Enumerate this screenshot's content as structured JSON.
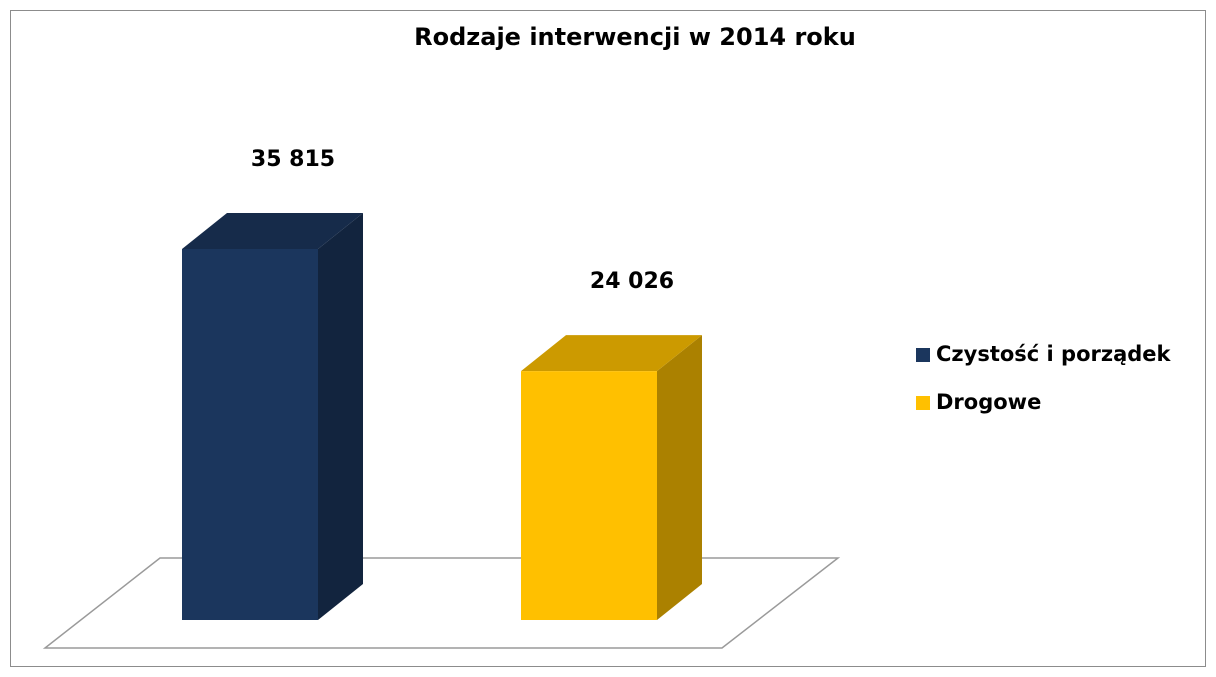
{
  "chart_data": {
    "type": "bar3d",
    "title": "Rodzaje interwencji w 2014 roku",
    "series": [
      {
        "name": "Czystość i porządek",
        "color": "#1b365d",
        "values": [
          35815
        ],
        "value_labels": [
          "35 815"
        ]
      },
      {
        "name": "Drogowe",
        "color": "#ffc000",
        "values": [
          24026
        ],
        "value_labels": [
          "24 026"
        ]
      }
    ],
    "legend": "right"
  }
}
